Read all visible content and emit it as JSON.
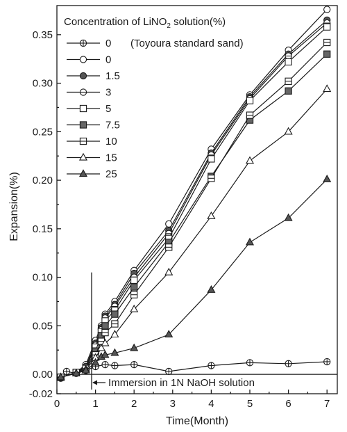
{
  "chart_data": {
    "type": "line",
    "xlabel": "Time(Month)",
    "ylabel": "Expansion(%)",
    "xlim": [
      0,
      7.2
    ],
    "ylim": [
      -0.02,
      0.38
    ],
    "x_ticks": [
      "0",
      "1",
      "2",
      "3",
      "4",
      "5",
      "6",
      "7"
    ],
    "y_ticks": [
      "-0.02",
      "0.00",
      "0.05",
      "0.10",
      "0.15",
      "0.20",
      "0.25",
      "0.30",
      "0.35"
    ],
    "y_tick_values": [
      -0.02,
      0.0,
      0.05,
      0.1,
      0.15,
      0.2,
      0.25,
      0.3,
      0.35
    ],
    "legend_title_parts": [
      "Concentration of LiNO",
      "2",
      " solution(%)"
    ],
    "legend_note": "(Toyoura standard sand)",
    "legend_position": "top-left",
    "annotation": {
      "text": "Immersion in 1N NaOH solution",
      "x": 0.9
    },
    "series": [
      {
        "name": "0",
        "marker": "circle-plus",
        "x": [
          0.1,
          0.25,
          0.5,
          0.75,
          1.0,
          1.25,
          1.5,
          2.0,
          2.9,
          4.0,
          5.0,
          6.0,
          7.0
        ],
        "values": [
          -0.004,
          0.003,
          0.001,
          0.004,
          0.008,
          0.01,
          0.009,
          0.01,
          0.003,
          0.009,
          0.012,
          0.011,
          0.013
        ]
      },
      {
        "name": "0",
        "marker": "circle-open",
        "x": [
          0.1,
          0.5,
          0.75,
          1.0,
          1.15,
          1.25,
          1.5,
          2.0,
          2.9,
          4.0,
          5.0,
          6.0,
          7.0
        ],
        "values": [
          -0.003,
          0.002,
          0.01,
          0.035,
          0.05,
          0.062,
          0.075,
          0.107,
          0.155,
          0.232,
          0.288,
          0.334,
          0.376
        ]
      },
      {
        "name": "1.5",
        "marker": "circle-filled",
        "x": [
          0.1,
          0.5,
          0.75,
          1.0,
          1.15,
          1.25,
          1.5,
          2.0,
          2.9,
          4.0,
          5.0,
          6.0,
          7.0
        ],
        "values": [
          -0.003,
          0.002,
          0.008,
          0.032,
          0.048,
          0.06,
          0.072,
          0.104,
          0.148,
          0.228,
          0.286,
          0.33,
          0.365
        ]
      },
      {
        "name": "3",
        "marker": "circle-half",
        "x": [
          0.1,
          0.5,
          0.75,
          1.0,
          1.15,
          1.25,
          1.5,
          2.0,
          2.9,
          4.0,
          5.0,
          6.0,
          7.0
        ],
        "values": [
          -0.003,
          0.002,
          0.008,
          0.03,
          0.046,
          0.058,
          0.07,
          0.1,
          0.145,
          0.226,
          0.284,
          0.328,
          0.362
        ]
      },
      {
        "name": "5",
        "marker": "square-open",
        "x": [
          0.1,
          0.5,
          0.75,
          1.0,
          1.15,
          1.25,
          1.5,
          2.0,
          2.9,
          4.0,
          5.0,
          6.0,
          7.0
        ],
        "values": [
          -0.003,
          0.002,
          0.007,
          0.028,
          0.044,
          0.055,
          0.066,
          0.097,
          0.14,
          0.222,
          0.282,
          0.322,
          0.358
        ]
      },
      {
        "name": "7.5",
        "marker": "square-filled",
        "x": [
          0.1,
          0.5,
          0.75,
          1.0,
          1.15,
          1.25,
          1.5,
          2.0,
          2.9,
          4.0,
          5.0,
          6.0,
          7.0
        ],
        "values": [
          -0.003,
          0.002,
          0.006,
          0.024,
          0.04,
          0.05,
          0.062,
          0.09,
          0.136,
          0.204,
          0.262,
          0.292,
          0.33
        ]
      },
      {
        "name": "10",
        "marker": "square-line",
        "x": [
          0.1,
          0.5,
          0.75,
          1.0,
          1.15,
          1.25,
          1.5,
          2.0,
          2.9,
          4.0,
          5.0,
          6.0,
          7.0
        ],
        "values": [
          -0.003,
          0.002,
          0.006,
          0.02,
          0.034,
          0.043,
          0.052,
          0.082,
          0.131,
          0.202,
          0.267,
          0.302,
          0.342
        ]
      },
      {
        "name": "15",
        "marker": "triangle-open",
        "x": [
          0.1,
          0.5,
          0.75,
          1.0,
          1.15,
          1.25,
          1.5,
          2.0,
          2.9,
          4.0,
          5.0,
          6.0,
          7.0
        ],
        "values": [
          -0.003,
          0.001,
          0.005,
          0.017,
          0.027,
          0.032,
          0.041,
          0.067,
          0.105,
          0.163,
          0.22,
          0.25,
          0.294
        ]
      },
      {
        "name": "25",
        "marker": "triangle-filled",
        "x": [
          0.1,
          0.5,
          0.75,
          1.0,
          1.15,
          1.25,
          1.5,
          2.0,
          2.9,
          4.0,
          5.0,
          6.0,
          7.0
        ],
        "values": [
          -0.003,
          0.001,
          0.004,
          0.012,
          0.018,
          0.02,
          0.022,
          0.027,
          0.041,
          0.087,
          0.136,
          0.161,
          0.201
        ]
      }
    ]
  }
}
